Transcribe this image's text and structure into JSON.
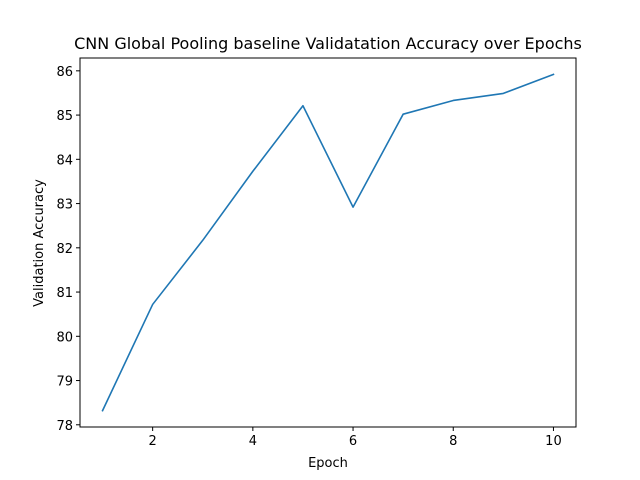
{
  "chart_data": {
    "type": "line",
    "title": "CNN Global Pooling baseline Validatation Accuracy over Epochs",
    "xlabel": "Epoch",
    "ylabel": "Validation Accuracy",
    "x": [
      1,
      2,
      3,
      4,
      5,
      6,
      7,
      8,
      9,
      10
    ],
    "series": [
      {
        "values": [
          78.32,
          80.72,
          82.17,
          83.73,
          85.21,
          82.92,
          85.02,
          85.33,
          85.49,
          85.92
        ],
        "color": "#1f77b4"
      }
    ],
    "xlim": [
      0.55,
      10.45
    ],
    "ylim": [
      77.95,
      86.29
    ],
    "xticks": [
      2,
      4,
      6,
      8,
      10
    ],
    "yticks": [
      78,
      79,
      80,
      81,
      82,
      83,
      84,
      85,
      86
    ],
    "grid": false,
    "legend": "none"
  }
}
